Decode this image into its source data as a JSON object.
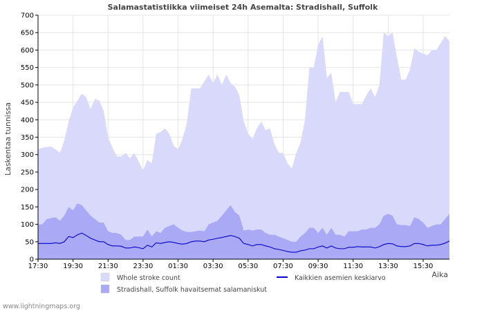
{
  "chart_data": {
    "type": "area",
    "title": "Salamastatistiikka viimeiset 24h Asemalta: Stradishall, Suffolk",
    "ylabel": "Laskentaa tunnissa",
    "xlabel": "Aika",
    "ylim": [
      0,
      700
    ],
    "y_ticks": [
      0,
      50,
      100,
      150,
      200,
      250,
      300,
      350,
      400,
      450,
      500,
      550,
      600,
      650,
      700
    ],
    "x_tick_labels": [
      "17:30",
      "19:30",
      "21:30",
      "23:30",
      "01:30",
      "03:30",
      "05:30",
      "07:30",
      "09:30",
      "11:30",
      "13:30",
      "15:30"
    ],
    "x_tick_step": 8,
    "series": [
      {
        "name": "Whole stroke count",
        "color": "#d9d9fc",
        "values": [
          315,
          320,
          322,
          323,
          315,
          305,
          340,
          395,
          435,
          455,
          475,
          465,
          430,
          460,
          455,
          425,
          350,
          320,
          295,
          295,
          305,
          290,
          305,
          280,
          255,
          285,
          275,
          360,
          365,
          375,
          360,
          325,
          315,
          345,
          390,
          490,
          490,
          490,
          510,
          530,
          505,
          530,
          500,
          530,
          505,
          495,
          470,
          395,
          360,
          345,
          375,
          395,
          370,
          375,
          330,
          305,
          305,
          275,
          260,
          305,
          335,
          400,
          550,
          550,
          615,
          640,
          520,
          535,
          450,
          480,
          480,
          480,
          445,
          445,
          445,
          470,
          490,
          465,
          500,
          650,
          640,
          650,
          580,
          515,
          515,
          545,
          605,
          595,
          590,
          585,
          600,
          600,
          620,
          640,
          625
        ]
      },
      {
        "name": "Stradishall, Suffolk havaitsemat salamaniskut",
        "color": "#a9a9f5",
        "values": [
          100,
          100,
          115,
          118,
          120,
          110,
          125,
          150,
          140,
          160,
          155,
          140,
          125,
          115,
          105,
          105,
          80,
          75,
          75,
          70,
          55,
          55,
          65,
          65,
          65,
          85,
          65,
          80,
          75,
          90,
          95,
          100,
          90,
          82,
          78,
          78,
          80,
          82,
          80,
          100,
          105,
          110,
          125,
          140,
          155,
          135,
          125,
          82,
          85,
          82,
          85,
          85,
          75,
          70,
          70,
          65,
          60,
          55,
          50,
          50,
          65,
          75,
          90,
          90,
          75,
          90,
          70,
          90,
          70,
          70,
          65,
          80,
          80,
          80,
          85,
          85,
          90,
          90,
          100,
          125,
          130,
          125,
          100,
          98,
          98,
          95,
          120,
          115,
          105,
          90,
          95,
          100,
          100,
          115,
          130
        ]
      },
      {
        "name": "Kaikkien asemien keskiarvo",
        "color": "#0000cc",
        "values": [
          45,
          45,
          45,
          45,
          47,
          45,
          50,
          65,
          62,
          70,
          75,
          68,
          60,
          55,
          50,
          50,
          42,
          38,
          38,
          37,
          32,
          32,
          35,
          33,
          30,
          40,
          35,
          47,
          45,
          48,
          50,
          48,
          45,
          43,
          45,
          50,
          52,
          52,
          50,
          55,
          57,
          60,
          62,
          65,
          68,
          65,
          60,
          45,
          42,
          38,
          42,
          42,
          38,
          35,
          30,
          28,
          25,
          22,
          20,
          20,
          24,
          26,
          30,
          30,
          35,
          38,
          32,
          38,
          32,
          30,
          30,
          34,
          34,
          36,
          35,
          35,
          35,
          32,
          36,
          42,
          45,
          44,
          38,
          36,
          36,
          38,
          45,
          45,
          42,
          38,
          40,
          40,
          42,
          46,
          52
        ]
      }
    ],
    "legend": [
      {
        "label": "Whole stroke count",
        "color": "#d9d9fc",
        "kind": "box"
      },
      {
        "label": "Stradishall, Suffolk havaitsemat salamaniskut",
        "color": "#a9a9f5",
        "kind": "box"
      },
      {
        "label": "Kaikkien asemien keskiarvo",
        "color": "#0000cc",
        "kind": "line"
      }
    ]
  },
  "footer": "www.lightningmaps.org"
}
